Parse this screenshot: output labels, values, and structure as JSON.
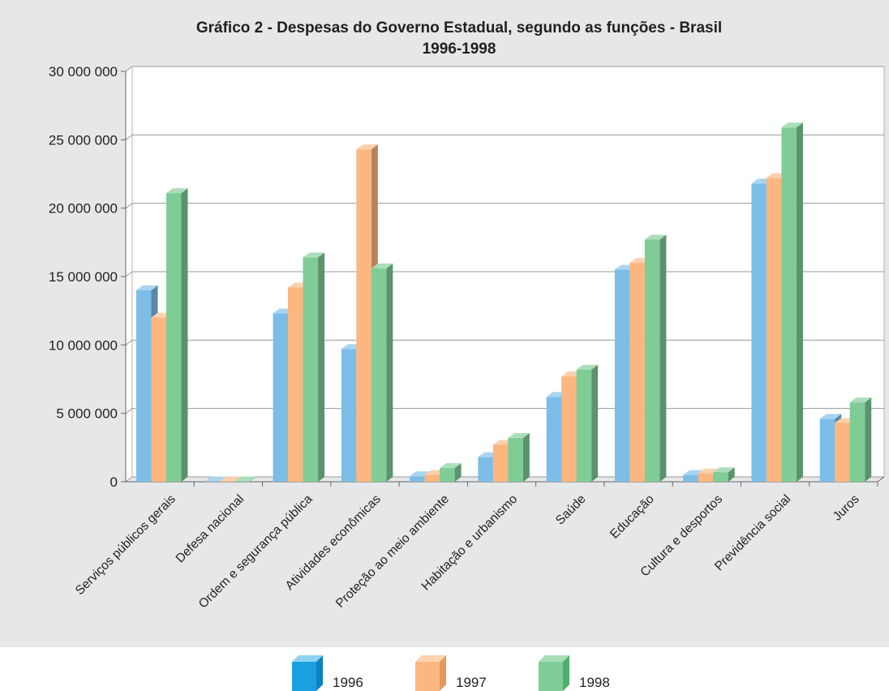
{
  "chart_data": {
    "type": "bar",
    "title": "Gráfico 2 - Despesas do Governo Estadual, segundo as funções -  Brasil",
    "subtitle": "1996-1998",
    "categories": [
      "Serviços públicos gerais",
      "Defesa nacional",
      "Ordem e segurança pública",
      "Atividades econômicas",
      "Proteção ao meio ambiente",
      "Habitação e urbanismo",
      "Saúde",
      "Educação",
      "Cultura e desportos",
      "Previdência social",
      "Juros"
    ],
    "series": [
      {
        "name": "1996",
        "color": "#7cbde8",
        "values": [
          14000000,
          30000,
          12300000,
          9700000,
          400000,
          1800000,
          6200000,
          15500000,
          500000,
          21800000,
          4600000
        ]
      },
      {
        "name": "1997",
        "color": "#fbb77f",
        "values": [
          12000000,
          30000,
          14200000,
          24300000,
          500000,
          2700000,
          7700000,
          16000000,
          600000,
          22200000,
          4300000
        ]
      },
      {
        "name": "1998",
        "color": "#7fcc96",
        "values": [
          21100000,
          30000,
          16400000,
          15600000,
          1000000,
          3200000,
          8200000,
          17700000,
          700000,
          25900000,
          5800000
        ]
      }
    ],
    "ylim": [
      0,
      30000000
    ],
    "yticks": [
      0,
      5000000,
      10000000,
      15000000,
      20000000,
      25000000,
      30000000
    ],
    "ytick_labels": [
      "0",
      "5 000 000",
      "10 000 000",
      "15 000 000",
      "20 000 000",
      "25 000 000",
      "30 000 000"
    ],
    "xlabel": "",
    "ylabel": "",
    "grid": true,
    "legend_position": "bottom"
  }
}
